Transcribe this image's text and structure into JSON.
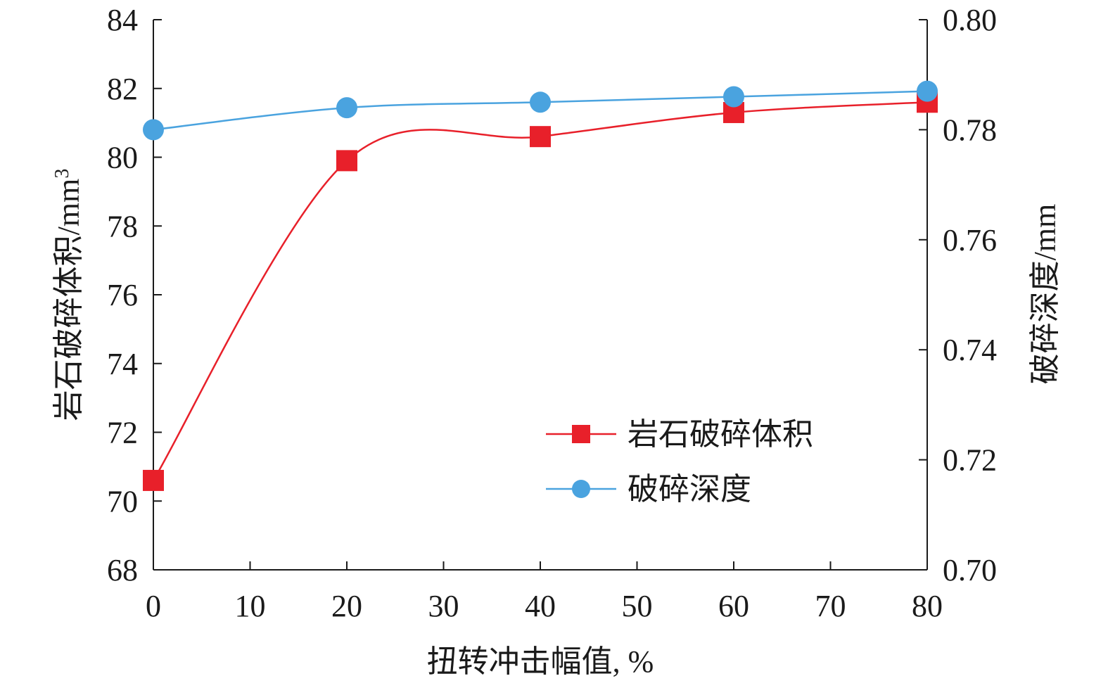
{
  "chart_data": {
    "type": "line",
    "xlabel": "扭转冲击幅值, %",
    "ylabel_left": "岩石破碎体积/mm",
    "ylabel_left_superscript": "3",
    "ylabel_right": "破碎深度/mm",
    "xlim": [
      0,
      80
    ],
    "ylim_left": [
      68,
      84
    ],
    "ylim_right": [
      0.7,
      0.8
    ],
    "x_ticks": [
      "0",
      "10",
      "20",
      "30",
      "40",
      "50",
      "60",
      "70",
      "80"
    ],
    "y_left_ticks": [
      "68",
      "70",
      "72",
      "74",
      "76",
      "78",
      "80",
      "82",
      "84"
    ],
    "y_right_ticks": [
      "0.70",
      "0.72",
      "0.74",
      "0.76",
      "0.78",
      "0.80"
    ],
    "legend_position": "bottom-right",
    "grid": false,
    "series": [
      {
        "name": "岩石破碎体积",
        "axis": "left",
        "marker": "square",
        "color": "#e8202a",
        "x": [
          0,
          20,
          40,
          60,
          80
        ],
        "values": [
          70.6,
          79.9,
          80.6,
          81.3,
          81.6
        ]
      },
      {
        "name": "破碎深度",
        "axis": "right",
        "marker": "circle",
        "color": "#4aa3df",
        "x": [
          0,
          20,
          40,
          60,
          80
        ],
        "values": [
          0.78,
          0.784,
          0.785,
          0.786,
          0.787
        ]
      }
    ]
  }
}
